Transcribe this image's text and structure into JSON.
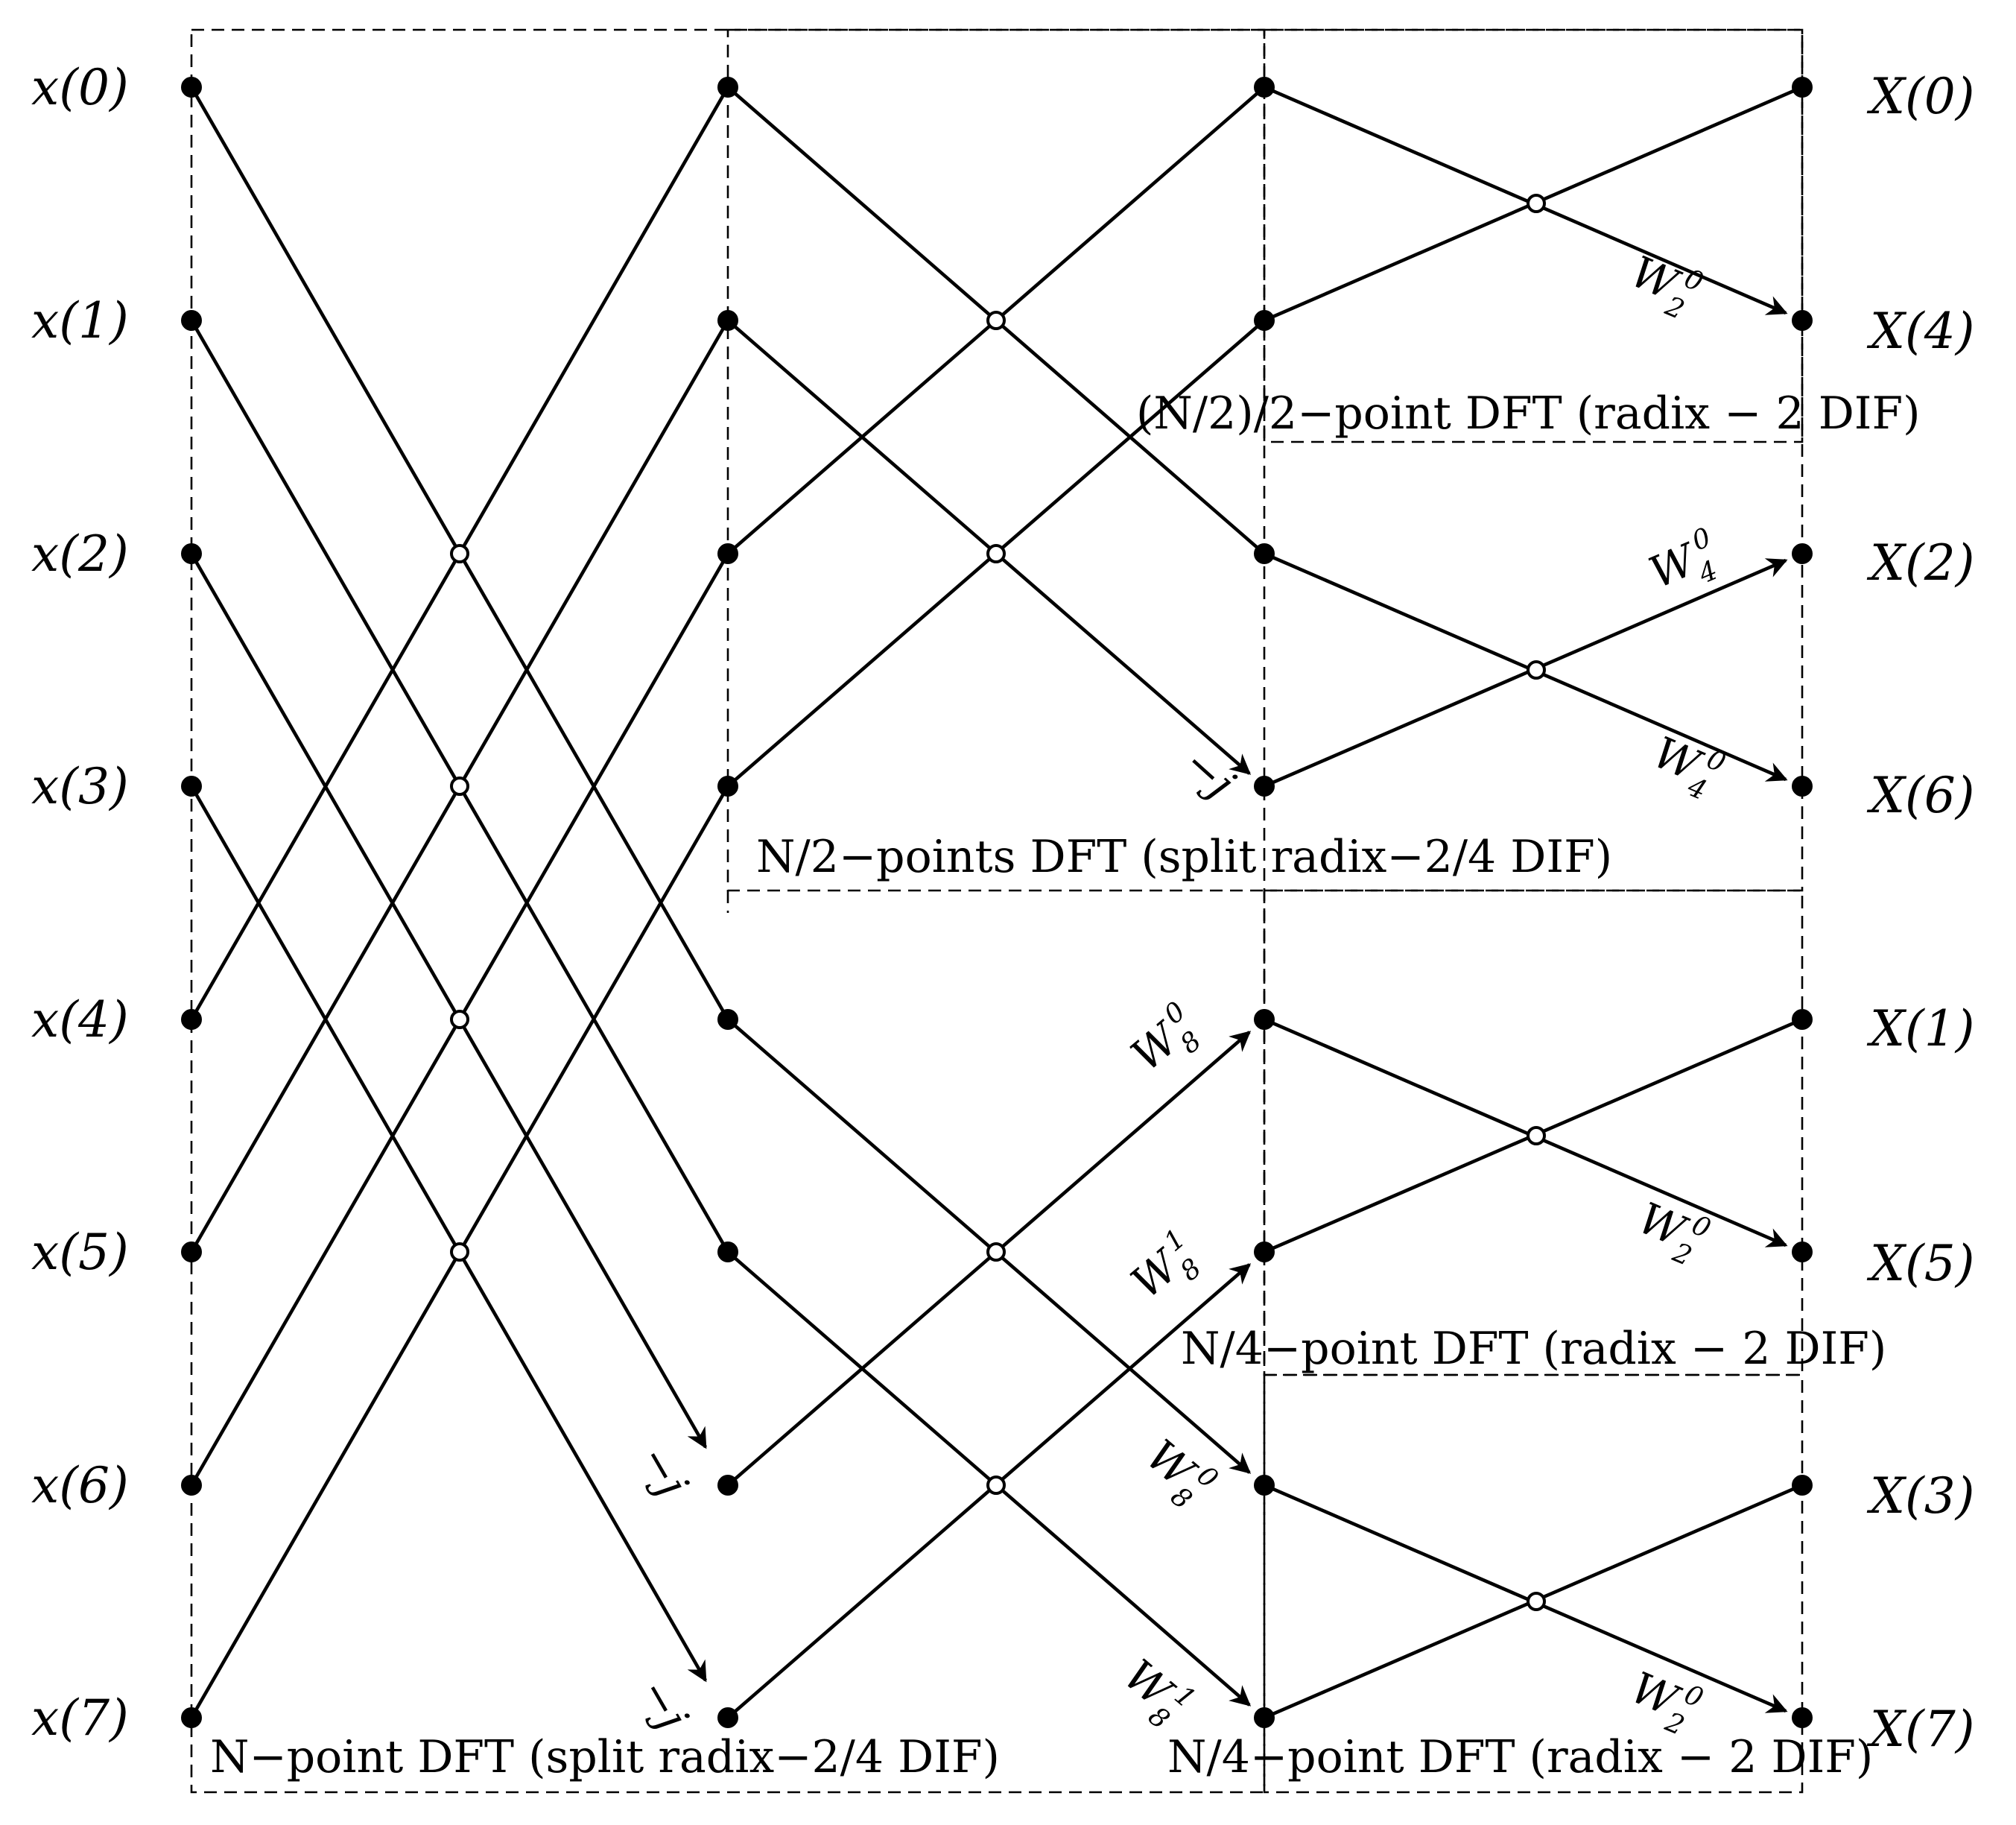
{
  "inputs": [
    "x(0)",
    "x(1)",
    "x(2)",
    "x(3)",
    "x(4)",
    "x(5)",
    "x(6)",
    "x(7)"
  ],
  "outputs": [
    "X(0)",
    "X(4)",
    "X(2)",
    "X(6)",
    "X(1)",
    "X(5)",
    "X(3)",
    "X(7)"
  ],
  "captions": {
    "stage_n": "N−point DFT (split radix−2/4 DIF)",
    "stage_n2": "N/2−points DFT (split radix−2/4 DIF)",
    "stage_n2_2": "(N/2)/2−point DFT (radix − 2 DIF)",
    "stage_n4_a": "N/4−point DFT (radix − 2 DIF)",
    "stage_n4_b": "N/4−point DFT (radix − 2 DIF)"
  },
  "factors": {
    "minus_j": "−j",
    "w": "W",
    "w2_0": {
      "sub": "2",
      "sup": "0"
    },
    "w4_0": {
      "sub": "4",
      "sup": "0"
    },
    "w8_0": {
      "sub": "8",
      "sup": "0"
    },
    "w8_1": {
      "sub": "8",
      "sup": "1"
    }
  }
}
